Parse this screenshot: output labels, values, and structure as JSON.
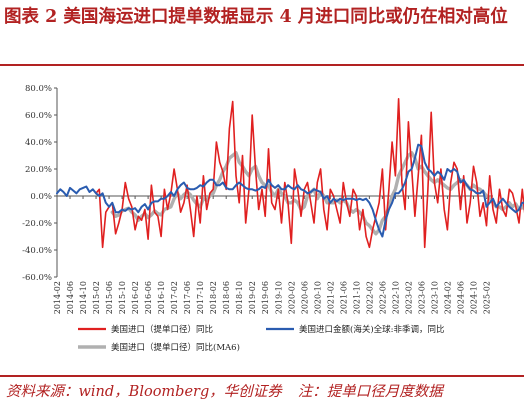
{
  "figure": {
    "label": "图表 2",
    "title": "美国海运进口提单数据显示 4 月进口同比或仍在相对高位",
    "source": "资料来源：wind，Bloomberg，华创证券",
    "note": "注：提单口径月度数据"
  },
  "colors": {
    "red_series": "#e02020",
    "blue_series": "#2a5cb0",
    "gray_series": "#b0b0b0",
    "accent": "#b22222"
  },
  "chart_data": {
    "type": "line",
    "ylim": [
      -60,
      80
    ],
    "y_ticks": [
      -60,
      -40,
      -20,
      0,
      20,
      40,
      60,
      80
    ],
    "y_tick_labels": [
      "-60.0%",
      "-40.0%",
      "-20.0%",
      "0.0%",
      "20.0%",
      "40.0%",
      "60.0%",
      "80.0%"
    ],
    "x_tick_labels": [
      "2014-02",
      "2014-06",
      "2014-10",
      "2015-02",
      "2015-06",
      "2015-10",
      "2016-02",
      "2016-06",
      "2016-10",
      "2017-02",
      "2017-06",
      "2017-10",
      "2018-02",
      "2018-06",
      "2018-10",
      "2019-02",
      "2019-06",
      "2019-10",
      "2020-02",
      "2020-06",
      "2020-10",
      "2021-02",
      "2021-06",
      "2021-10",
      "2022-02",
      "2022-06",
      "2022-10",
      "2023-02",
      "2023-06",
      "2023-10",
      "2024-02",
      "2024-06",
      "2024-10",
      "2025-02"
    ],
    "x_start": "2014-02",
    "x_end": "2025-04",
    "grid": false,
    "legend_position": "bottom",
    "series": [
      {
        "name": "美国进口（提单口径）同比",
        "start": "2014-02",
        "values": [
          null,
          null,
          null,
          null,
          null,
          null,
          null,
          null,
          null,
          null,
          null,
          null,
          2,
          5,
          -38,
          -12,
          -8,
          -5,
          -28,
          -20,
          -10,
          10,
          -2,
          -8,
          -25,
          -15,
          -18,
          -10,
          -32,
          8,
          -12,
          -15,
          -30,
          5,
          -10,
          2,
          20,
          5,
          -12,
          -5,
          8,
          -10,
          -30,
          0,
          -20,
          15,
          -10,
          2,
          5,
          40,
          25,
          18,
          5,
          50,
          70,
          15,
          -5,
          30,
          -20,
          5,
          60,
          20,
          -10,
          5,
          -15,
          35,
          -5,
          -10,
          5,
          -20,
          10,
          -5,
          -35,
          20,
          5,
          -15,
          5,
          10,
          -5,
          -20,
          10,
          20,
          -10,
          -25,
          5,
          0,
          -10,
          -20,
          10,
          -5,
          -15,
          5,
          0,
          -25,
          -10,
          -30,
          -38,
          -25,
          -15,
          -5,
          20,
          -25,
          5,
          40,
          15,
          72,
          10,
          -10,
          55,
          20,
          -15,
          15,
          45,
          -38,
          5,
          62,
          10,
          -5,
          20,
          -10,
          -25,
          10,
          25,
          20,
          -10,
          15,
          -20,
          -5,
          22,
          10,
          -15,
          -5,
          -22,
          15,
          -10,
          -20,
          5,
          -10,
          -15,
          5,
          2,
          -8,
          -20,
          5,
          -18,
          -10,
          10,
          -20,
          15,
          -15,
          10,
          -5,
          25,
          -10,
          -15,
          5,
          10,
          -15,
          50,
          5,
          -10,
          5,
          20,
          -5,
          42,
          -28,
          15,
          -10,
          40,
          -10,
          15,
          25,
          5,
          30,
          10,
          -8,
          0,
          5,
          8
        ]
      },
      {
        "name": "美国进口金额(海关)全球:非季调，同比",
        "start": "2014-02",
        "values": [
          2,
          5,
          3,
          0,
          6,
          4,
          2,
          5,
          6,
          7,
          3,
          5,
          2,
          0,
          2,
          -5,
          -8,
          -5,
          -12,
          -12,
          -10,
          -11,
          -9,
          -10,
          -9,
          -12,
          -8,
          -6,
          -10,
          -5,
          -4,
          -4,
          -2,
          -2,
          0,
          3,
          0,
          5,
          8,
          10,
          6,
          5,
          5,
          6,
          8,
          7,
          10,
          12,
          12,
          8,
          8,
          10,
          6,
          5,
          5,
          8,
          10,
          8,
          6,
          5,
          5,
          4,
          5,
          7,
          6,
          12,
          8,
          6,
          8,
          5,
          5,
          8,
          6,
          5,
          8,
          5,
          4,
          2,
          3,
          5,
          4,
          3,
          -2,
          0,
          -5,
          -2,
          -4,
          -2,
          -3,
          -2,
          -2,
          -2,
          -3,
          -2,
          -3,
          -2,
          -5,
          -10,
          -18,
          -25,
          -30,
          -18,
          -10,
          -5,
          2,
          2,
          5,
          10,
          18,
          20,
          28,
          38,
          37,
          25,
          20,
          18,
          15,
          18,
          16,
          12,
          20,
          18,
          20,
          18,
          10,
          12,
          8,
          5,
          4,
          2,
          2,
          4,
          -8,
          -5,
          -2,
          -8,
          -5,
          -2,
          -5,
          -8,
          -10,
          -12,
          -10,
          -5,
          -5,
          -4,
          -5,
          -3,
          -2,
          -1,
          -2,
          -2,
          0,
          -1,
          2,
          5,
          2,
          4,
          5,
          5,
          8,
          6,
          8,
          8,
          10,
          12,
          10,
          12,
          8,
          12,
          15,
          20,
          22,
          8,
          5,
          8,
          10,
          5,
          6
        ]
      },
      {
        "name": "美国进口（提单口径）同比(MA6)",
        "start": "2014-02",
        "values": [
          null,
          null,
          null,
          null,
          null,
          null,
          null,
          null,
          null,
          null,
          null,
          null,
          null,
          null,
          null,
          null,
          null,
          -12,
          -15,
          -14,
          -11,
          -10,
          -9,
          -12,
          -14,
          -18,
          -15,
          -13,
          -16,
          -14,
          -11,
          -13,
          -14,
          -10,
          -9,
          -8,
          -2,
          2,
          -2,
          1,
          3,
          1,
          -3,
          -6,
          -8,
          -2,
          -3,
          0,
          2,
          8,
          12,
          18,
          22,
          28,
          30,
          32,
          25,
          22,
          18,
          15,
          20,
          22,
          15,
          10,
          8,
          8,
          3,
          0,
          5,
          2,
          0,
          -5,
          -5,
          -3,
          -5,
          -10,
          -8,
          0,
          3,
          5,
          -2,
          3,
          0,
          -5,
          -5,
          -5,
          -3,
          -5,
          -3,
          -5,
          -10,
          -12,
          -10,
          -12,
          -15,
          -20,
          -22,
          -25,
          -28,
          -25,
          -18,
          -15,
          -8,
          0,
          5,
          15,
          20,
          25,
          30,
          32,
          28,
          20,
          22,
          18,
          15,
          12,
          10,
          12,
          10,
          8,
          6,
          5,
          8,
          10,
          12,
          10,
          8,
          5,
          8,
          6,
          5,
          3,
          0,
          -2,
          -5,
          -8,
          -8,
          -10,
          -8,
          -5,
          -8,
          -6,
          -10,
          -8,
          -10,
          -8,
          -8,
          -4,
          -2,
          0,
          -3,
          -2,
          5,
          2,
          0,
          2,
          3,
          5,
          8,
          8,
          10,
          10,
          12,
          10,
          12,
          5,
          8,
          5,
          10,
          8,
          12,
          15,
          12,
          15,
          18,
          12,
          10,
          8,
          5
        ]
      }
    ]
  }
}
